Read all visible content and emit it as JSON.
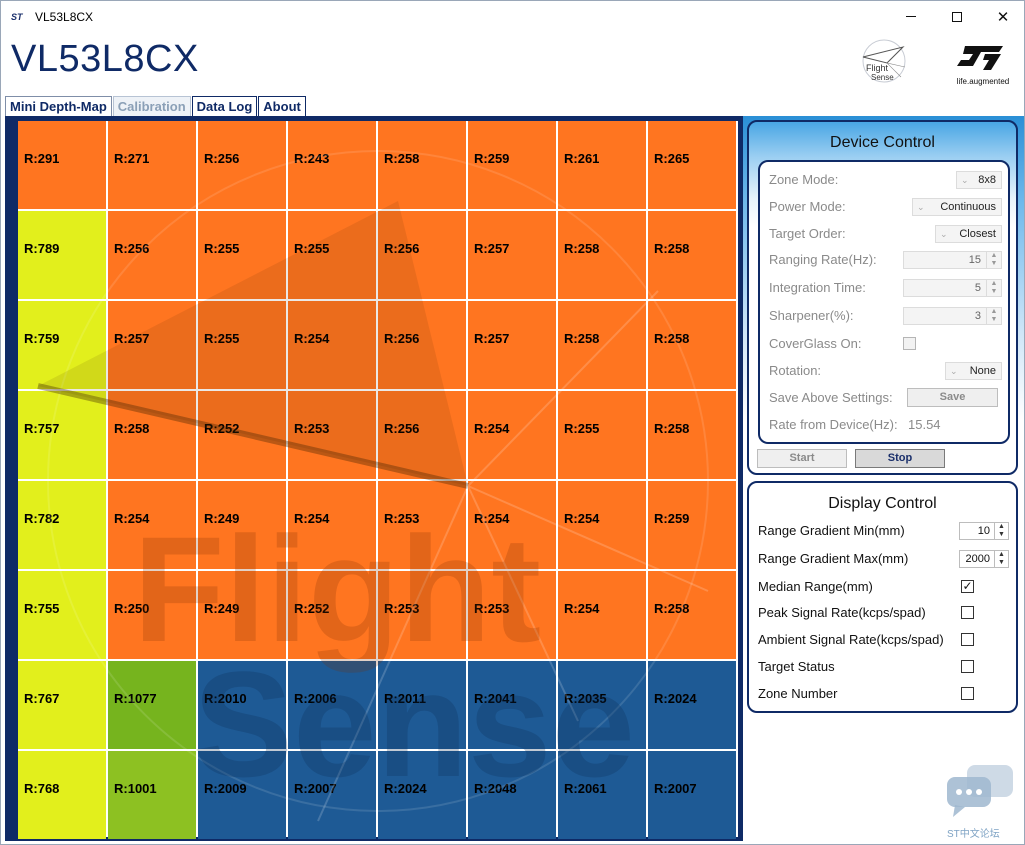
{
  "window": {
    "title": "VL53L8CX",
    "icon": "st-icon"
  },
  "header": {
    "app_title": "VL53L8CX",
    "flight_sense_logo": "Flight Sense",
    "st_tagline": "life.augmented"
  },
  "tabs": [
    {
      "label": "Mini Depth-Map",
      "state": "active"
    },
    {
      "label": "Calibration",
      "state": "disabled"
    },
    {
      "label": "Data Log",
      "state": "normal"
    },
    {
      "label": "About",
      "state": "normal"
    }
  ],
  "colors": {
    "orange": "#ff7520",
    "yellow": "#e2ef1c",
    "green_a": "#76b41e",
    "green_b": "#8dc122",
    "blue": "#1e5a95",
    "frame": "#0f2a66"
  },
  "depth_map": {
    "rows": [
      [
        "R:291",
        "R:271",
        "R:256",
        "R:243",
        "R:258",
        "R:259",
        "R:261",
        "R:265"
      ],
      [
        "R:789",
        "R:256",
        "R:255",
        "R:255",
        "R:256",
        "R:257",
        "R:258",
        "R:258"
      ],
      [
        "R:759",
        "R:257",
        "R:255",
        "R:254",
        "R:256",
        "R:257",
        "R:258",
        "R:258"
      ],
      [
        "R:757",
        "R:258",
        "R:252",
        "R:253",
        "R:256",
        "R:254",
        "R:255",
        "R:258"
      ],
      [
        "R:782",
        "R:254",
        "R:249",
        "R:254",
        "R:253",
        "R:254",
        "R:254",
        "R:259"
      ],
      [
        "R:755",
        "R:250",
        "R:249",
        "R:252",
        "R:253",
        "R:253",
        "R:254",
        "R:258"
      ],
      [
        "R:767",
        "R:1077",
        "R:2010",
        "R:2006",
        "R:2011",
        "R:2041",
        "R:2035",
        "R:2024"
      ],
      [
        "R:768",
        "R:1001",
        "R:2009",
        "R:2007",
        "R:2024",
        "R:2048",
        "R:2061",
        "R:2007"
      ]
    ],
    "cell_colors": [
      [
        "orange",
        "orange",
        "orange",
        "orange",
        "orange",
        "orange",
        "orange",
        "orange"
      ],
      [
        "yellow",
        "orange",
        "orange",
        "orange",
        "orange",
        "orange",
        "orange",
        "orange"
      ],
      [
        "yellow",
        "orange",
        "orange",
        "orange",
        "orange",
        "orange",
        "orange",
        "orange"
      ],
      [
        "yellow",
        "orange",
        "orange",
        "orange",
        "orange",
        "orange",
        "orange",
        "orange"
      ],
      [
        "yellow",
        "orange",
        "orange",
        "orange",
        "orange",
        "orange",
        "orange",
        "orange"
      ],
      [
        "yellow",
        "orange",
        "orange",
        "orange",
        "orange",
        "orange",
        "orange",
        "orange"
      ],
      [
        "yellow",
        "green_a",
        "blue",
        "blue",
        "blue",
        "blue",
        "blue",
        "blue"
      ],
      [
        "yellow",
        "green_b",
        "blue",
        "blue",
        "blue",
        "blue",
        "blue",
        "blue"
      ]
    ],
    "watermark": "Flight Sense"
  },
  "device_control": {
    "title": "Device Control",
    "zone_mode": {
      "label": "Zone Mode:",
      "value": "8x8"
    },
    "power_mode": {
      "label": "Power Mode:",
      "value": "Continuous"
    },
    "target_order": {
      "label": "Target Order:",
      "value": "Closest"
    },
    "ranging_rate": {
      "label": "Ranging Rate(Hz):",
      "value": "15"
    },
    "integration_time": {
      "label": "Integration Time:",
      "value": "5"
    },
    "sharpener": {
      "label": "Sharpener(%):",
      "value": "3"
    },
    "coverglass": {
      "label": "CoverGlass On:",
      "checked": false
    },
    "rotation": {
      "label": "Rotation:",
      "value": "None"
    },
    "save_settings": {
      "label": "Save Above Settings:",
      "button": "Save"
    },
    "rate_from_device": {
      "label": "Rate from Device(Hz):",
      "value": "15.54"
    },
    "start_button": "Start",
    "stop_button": "Stop"
  },
  "display_control": {
    "title": "Display Control",
    "range_min": {
      "label": "Range Gradient Min(mm)",
      "value": "10"
    },
    "range_max": {
      "label": "Range Gradient Max(mm)",
      "value": "2000"
    },
    "median_range": {
      "label": "Median Range(mm)",
      "checked": true
    },
    "peak_signal": {
      "label": "Peak Signal Rate(kcps/spad)",
      "checked": false
    },
    "ambient_signal": {
      "label": "Ambient Signal Rate(kcps/spad)",
      "checked": false
    },
    "target_status": {
      "label": "Target Status",
      "checked": false
    },
    "zone_number": {
      "label": "Zone Number",
      "checked": false
    }
  },
  "forum_badge": {
    "text": "ST中文论坛",
    "icon": "chat-bubble-icon"
  }
}
